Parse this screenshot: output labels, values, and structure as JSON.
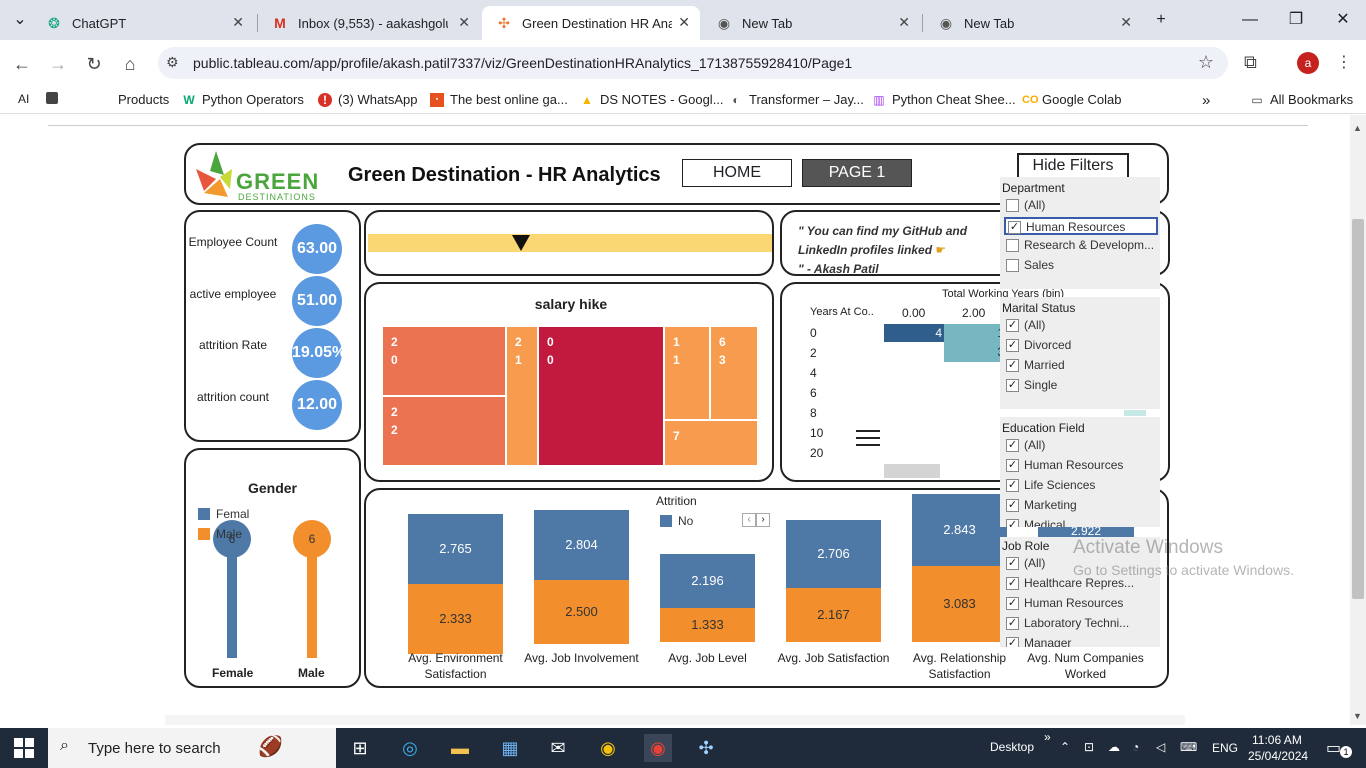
{
  "browser": {
    "tabs": [
      {
        "title": "ChatGPT",
        "icon": "chatgpt-icon"
      },
      {
        "title": "Inbox (9,553) - aakashgolu",
        "icon": "gmail-icon"
      },
      {
        "title": "Green Destination HR Analy",
        "icon": "tableau-icon"
      },
      {
        "title": "New Tab",
        "icon": "chrome-icon"
      },
      {
        "title": "New Tab",
        "icon": "chrome-icon"
      }
    ],
    "url": "public.tableau.com/app/profile/akash.patil7337/viz/GreenDestinationHRAnalytics_17138755928410/Page1",
    "avatar_letter": "a",
    "bookmarks": [
      "Products",
      "Python Operators",
      "(3) WhatsApp",
      "The best online ga...",
      "DS NOTES - Googl...",
      "Transformer – Jay...",
      "Python Cheat Shee...",
      "Google Colab"
    ],
    "all_bookmarks": "All Bookmarks",
    "ai_label": "AI"
  },
  "header": {
    "logo_word": "GREEN",
    "logo_sub": "DESTINATIONS",
    "title": "Green  Destination - HR Analytics",
    "home": "HOME",
    "page1": "PAGE 1",
    "hide_filters": "Hide Filters"
  },
  "kpis": [
    {
      "label": "Employee Count",
      "value": "63.00"
    },
    {
      "label": "active employee",
      "value": "51.00"
    },
    {
      "label": "attrition Rate",
      "value": "19.05%"
    },
    {
      "label": "attrition count",
      "value": "12.00"
    }
  ],
  "quote": {
    "line1": "\" You can find my GitHub and",
    "line2": "LinkedIn profiles linked",
    "line3": "\" - Akash Patil"
  },
  "salary": {
    "title": "salary hike",
    "cells": [
      {
        "a": "2",
        "b": "0",
        "color": "#ec7352"
      },
      {
        "a": "2",
        "b": "2",
        "color": "#ec7352"
      },
      {
        "a": "2",
        "b": "1",
        "color": "#f79b4f"
      },
      {
        "a": "0",
        "b": "0",
        "color": "#c2193f"
      },
      {
        "a": "1",
        "b": "1",
        "color": "#f79b4f"
      },
      {
        "a": "6",
        "b": "3",
        "color": "#f79b4f"
      },
      {
        "a": "7",
        "b": "",
        "color": "#f79b4f"
      }
    ]
  },
  "twy": {
    "title": "Total Working Years (bin)",
    "row_head": "Years At Co..",
    "ticks": [
      "0.00",
      "2.00"
    ],
    "rows": [
      "0",
      "2",
      "4",
      "6",
      "8",
      "10",
      "20"
    ],
    "bar1": "4",
    "bar2a": "1",
    "bar2b": "3"
  },
  "gender": {
    "title": "Gender",
    "legend": [
      "Femal",
      "Male"
    ],
    "female_value": "6",
    "male_value": "6",
    "female_label": "Female",
    "male_label": "Male",
    "female_color": "#4e79a7",
    "male_color": "#f28e2b"
  },
  "attrition_bars": {
    "legend_title": "Attrition",
    "legend_item": "No",
    "categories": [
      {
        "label1": "Avg. Environment",
        "label2": "Satisfaction",
        "top": "2.765",
        "bottom": "2.333"
      },
      {
        "label1": "Avg. Job Involvement",
        "label2": "",
        "top": "2.804",
        "bottom": "2.500"
      },
      {
        "label1": "Avg. Job Level",
        "label2": "",
        "top": "2.196",
        "bottom": "1.333"
      },
      {
        "label1": "Avg. Job Satisfaction",
        "label2": "",
        "top": "2.706",
        "bottom": "2.167"
      },
      {
        "label1": "Avg. Relationship",
        "label2": "Satisfaction",
        "top": "2.843",
        "bottom": "3.083"
      },
      {
        "label1": "Avg. Num Companies",
        "label2": "Worked",
        "top": "2.922",
        "bottom": ""
      }
    ],
    "top_color": "#4e79a7",
    "bottom_color": "#f28e2b"
  },
  "filters": {
    "department": {
      "title": "Department",
      "items": [
        {
          "label": "(All)",
          "checked": false
        },
        {
          "label": "Human Resources",
          "checked": true
        },
        {
          "label": "Research & Developm...",
          "checked": false
        },
        {
          "label": "Sales",
          "checked": false
        }
      ]
    },
    "marital": {
      "title": "Marital Status",
      "items": [
        {
          "label": "(All)",
          "checked": true
        },
        {
          "label": "Divorced",
          "checked": true
        },
        {
          "label": "Married",
          "checked": true
        },
        {
          "label": "Single",
          "checked": true
        }
      ]
    },
    "education": {
      "title": "Education Field",
      "items": [
        {
          "label": "(All)",
          "checked": true
        },
        {
          "label": "Human Resources",
          "checked": true
        },
        {
          "label": "Life Sciences",
          "checked": true
        },
        {
          "label": "Marketing",
          "checked": true
        },
        {
          "label": "Medical",
          "checked": true
        }
      ]
    },
    "jobrole": {
      "title": "Job Role",
      "items": [
        {
          "label": "(All)",
          "checked": true
        },
        {
          "label": "Healthcare Repres...",
          "checked": true
        },
        {
          "label": "Human Resources",
          "checked": true
        },
        {
          "label": "Laboratory Techni...",
          "checked": true
        },
        {
          "label": "Manager",
          "checked": true
        }
      ]
    }
  },
  "watermark": {
    "line1": "Activate Windows",
    "line2": "Go to Settings to activate Windows."
  },
  "taskbar": {
    "search_placeholder": "Type here to search",
    "desktop": "Desktop",
    "lang": "ENG",
    "time": "11:06 AM",
    "date": "25/04/2024",
    "notif": "1"
  }
}
